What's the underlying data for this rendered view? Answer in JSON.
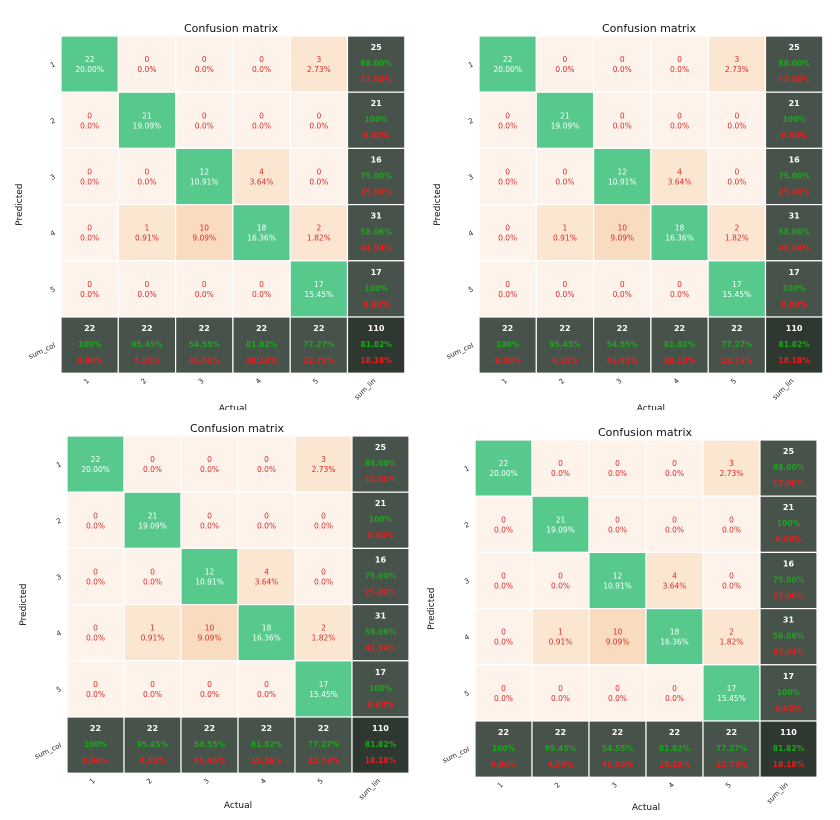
{
  "chart_data": [
    {
      "type": "heatmap",
      "title": "Confusion matrix",
      "xlabel": "Actual",
      "ylabel": "Predicted",
      "row_labels": [
        "1",
        "2",
        "3",
        "4",
        "5",
        "sum_col"
      ],
      "col_labels": [
        "1",
        "2",
        "3",
        "4",
        "5",
        "sum_lin"
      ],
      "cells": [
        [
          {
            "count": "22",
            "pct": "20.00%"
          },
          {
            "count": "0",
            "pct": "0.0%"
          },
          {
            "count": "0",
            "pct": "0.0%"
          },
          {
            "count": "0",
            "pct": "0.0%"
          },
          {
            "count": "3",
            "pct": "2.73%"
          },
          {
            "count": "25",
            "pct": "88.00%",
            "err": "12.00%"
          }
        ],
        [
          {
            "count": "0",
            "pct": "0.0%"
          },
          {
            "count": "21",
            "pct": "19.09%"
          },
          {
            "count": "0",
            "pct": "0.0%"
          },
          {
            "count": "0",
            "pct": "0.0%"
          },
          {
            "count": "0",
            "pct": "0.0%"
          },
          {
            "count": "21",
            "pct": "100%",
            "err": "0.00%"
          }
        ],
        [
          {
            "count": "0",
            "pct": "0.0%"
          },
          {
            "count": "0",
            "pct": "0.0%"
          },
          {
            "count": "12",
            "pct": "10.91%"
          },
          {
            "count": "4",
            "pct": "3.64%"
          },
          {
            "count": "0",
            "pct": "0.0%"
          },
          {
            "count": "16",
            "pct": "75.00%",
            "err": "25.00%"
          }
        ],
        [
          {
            "count": "0",
            "pct": "0.0%"
          },
          {
            "count": "1",
            "pct": "0.91%"
          },
          {
            "count": "10",
            "pct": "9.09%"
          },
          {
            "count": "18",
            "pct": "16.36%"
          },
          {
            "count": "2",
            "pct": "1.82%"
          },
          {
            "count": "31",
            "pct": "58.06%",
            "err": "41.94%"
          }
        ],
        [
          {
            "count": "0",
            "pct": "0.0%"
          },
          {
            "count": "0",
            "pct": "0.0%"
          },
          {
            "count": "0",
            "pct": "0.0%"
          },
          {
            "count": "0",
            "pct": "0.0%"
          },
          {
            "count": "17",
            "pct": "15.45%"
          },
          {
            "count": "17",
            "pct": "100%",
            "err": "0.00%"
          }
        ],
        [
          {
            "count": "22",
            "pct": "100%",
            "err": "0.00%"
          },
          {
            "count": "22",
            "pct": "95.45%",
            "err": "4.55%"
          },
          {
            "count": "22",
            "pct": "54.55%",
            "err": "45.45%"
          },
          {
            "count": "22",
            "pct": "81.82%",
            "err": "18.18%"
          },
          {
            "count": "22",
            "pct": "77.27%",
            "err": "22.73%"
          },
          {
            "count": "110",
            "pct": "81.82%",
            "err": "18.18%"
          }
        ]
      ]
    },
    {
      "type": "heatmap",
      "title": "Confusion matrix",
      "xlabel": "Actual",
      "ylabel": "Predicted",
      "row_labels": [
        "1",
        "2",
        "3",
        "4",
        "5",
        "sum_col"
      ],
      "col_labels": [
        "1",
        "2",
        "3",
        "4",
        "5",
        "sum_lin"
      ],
      "cells": [
        [
          {
            "count": "22",
            "pct": "20.00%"
          },
          {
            "count": "0",
            "pct": "0.0%"
          },
          {
            "count": "0",
            "pct": "0.0%"
          },
          {
            "count": "0",
            "pct": "0.0%"
          },
          {
            "count": "3",
            "pct": "2.73%"
          },
          {
            "count": "25",
            "pct": "88.00%",
            "err": "12.00%"
          }
        ],
        [
          {
            "count": "0",
            "pct": "0.0%"
          },
          {
            "count": "21",
            "pct": "19.09%"
          },
          {
            "count": "0",
            "pct": "0.0%"
          },
          {
            "count": "0",
            "pct": "0.0%"
          },
          {
            "count": "0",
            "pct": "0.0%"
          },
          {
            "count": "21",
            "pct": "100%",
            "err": "0.00%"
          }
        ],
        [
          {
            "count": "0",
            "pct": "0.0%"
          },
          {
            "count": "0",
            "pct": "0.0%"
          },
          {
            "count": "12",
            "pct": "10.91%"
          },
          {
            "count": "4",
            "pct": "3.64%"
          },
          {
            "count": "0",
            "pct": "0.0%"
          },
          {
            "count": "16",
            "pct": "75.00%",
            "err": "25.00%"
          }
        ],
        [
          {
            "count": "0",
            "pct": "0.0%"
          },
          {
            "count": "1",
            "pct": "0.91%"
          },
          {
            "count": "10",
            "pct": "9.09%"
          },
          {
            "count": "18",
            "pct": "16.36%"
          },
          {
            "count": "2",
            "pct": "1.82%"
          },
          {
            "count": "31",
            "pct": "58.06%",
            "err": "41.94%"
          }
        ],
        [
          {
            "count": "0",
            "pct": "0.0%"
          },
          {
            "count": "0",
            "pct": "0.0%"
          },
          {
            "count": "0",
            "pct": "0.0%"
          },
          {
            "count": "0",
            "pct": "0.0%"
          },
          {
            "count": "17",
            "pct": "15.45%"
          },
          {
            "count": "17",
            "pct": "100%",
            "err": "0.00%"
          }
        ],
        [
          {
            "count": "22",
            "pct": "100%",
            "err": "0.00%"
          },
          {
            "count": "22",
            "pct": "95.45%",
            "err": "4.55%"
          },
          {
            "count": "22",
            "pct": "54.55%",
            "err": "45.45%"
          },
          {
            "count": "22",
            "pct": "81.82%",
            "err": "18.18%"
          },
          {
            "count": "22",
            "pct": "77.27%",
            "err": "22.73%"
          },
          {
            "count": "110",
            "pct": "81.82%",
            "err": "18.18%"
          }
        ]
      ]
    },
    {
      "type": "heatmap",
      "title": "Confusion matrix",
      "xlabel": "Actual",
      "ylabel": "Predicted",
      "row_labels": [
        "1",
        "2",
        "3",
        "4",
        "5",
        "sum_col"
      ],
      "col_labels": [
        "1",
        "2",
        "3",
        "4",
        "5",
        "sum_lin"
      ],
      "cells": [
        [
          {
            "count": "22",
            "pct": "20.00%"
          },
          {
            "count": "0",
            "pct": "0.0%"
          },
          {
            "count": "0",
            "pct": "0.0%"
          },
          {
            "count": "0",
            "pct": "0.0%"
          },
          {
            "count": "3",
            "pct": "2.73%"
          },
          {
            "count": "25",
            "pct": "88.00%",
            "err": "12.00%"
          }
        ],
        [
          {
            "count": "0",
            "pct": "0.0%"
          },
          {
            "count": "21",
            "pct": "19.09%"
          },
          {
            "count": "0",
            "pct": "0.0%"
          },
          {
            "count": "0",
            "pct": "0.0%"
          },
          {
            "count": "0",
            "pct": "0.0%"
          },
          {
            "count": "21",
            "pct": "100%",
            "err": "0.00%"
          }
        ],
        [
          {
            "count": "0",
            "pct": "0.0%"
          },
          {
            "count": "0",
            "pct": "0.0%"
          },
          {
            "count": "12",
            "pct": "10.91%"
          },
          {
            "count": "4",
            "pct": "3.64%"
          },
          {
            "count": "0",
            "pct": "0.0%"
          },
          {
            "count": "16",
            "pct": "75.00%",
            "err": "25.00%"
          }
        ],
        [
          {
            "count": "0",
            "pct": "0.0%"
          },
          {
            "count": "1",
            "pct": "0.91%"
          },
          {
            "count": "10",
            "pct": "9.09%"
          },
          {
            "count": "18",
            "pct": "16.36%"
          },
          {
            "count": "2",
            "pct": "1.82%"
          },
          {
            "count": "31",
            "pct": "58.06%",
            "err": "41.94%"
          }
        ],
        [
          {
            "count": "0",
            "pct": "0.0%"
          },
          {
            "count": "0",
            "pct": "0.0%"
          },
          {
            "count": "0",
            "pct": "0.0%"
          },
          {
            "count": "0",
            "pct": "0.0%"
          },
          {
            "count": "17",
            "pct": "15.45%"
          },
          {
            "count": "17",
            "pct": "100%",
            "err": "0.00%"
          }
        ],
        [
          {
            "count": "22",
            "pct": "100%",
            "err": "0.00%"
          },
          {
            "count": "22",
            "pct": "95.45%",
            "err": "4.55%"
          },
          {
            "count": "22",
            "pct": "54.55%",
            "err": "45.45%"
          },
          {
            "count": "22",
            "pct": "81.82%",
            "err": "18.18%"
          },
          {
            "count": "22",
            "pct": "77.27%",
            "err": "22.73%"
          },
          {
            "count": "110",
            "pct": "81.82%",
            "err": "18.18%"
          }
        ]
      ]
    },
    {
      "type": "heatmap",
      "title": "Confusion matrix",
      "xlabel": "Actual",
      "ylabel": "Predicted",
      "row_labels": [
        "1",
        "2",
        "3",
        "4",
        "5",
        "sum_col"
      ],
      "col_labels": [
        "1",
        "2",
        "3",
        "4",
        "5",
        "sum_lin"
      ],
      "cells": [
        [
          {
            "count": "22",
            "pct": "20.00%"
          },
          {
            "count": "0",
            "pct": "0.0%"
          },
          {
            "count": "0",
            "pct": "0.0%"
          },
          {
            "count": "0",
            "pct": "0.0%"
          },
          {
            "count": "3",
            "pct": "2.73%"
          },
          {
            "count": "25",
            "pct": "88.00%",
            "err": "12.00%"
          }
        ],
        [
          {
            "count": "0",
            "pct": "0.0%"
          },
          {
            "count": "21",
            "pct": "19.09%"
          },
          {
            "count": "0",
            "pct": "0.0%"
          },
          {
            "count": "0",
            "pct": "0.0%"
          },
          {
            "count": "0",
            "pct": "0.0%"
          },
          {
            "count": "21",
            "pct": "100%",
            "err": "0.00%"
          }
        ],
        [
          {
            "count": "0",
            "pct": "0.0%"
          },
          {
            "count": "0",
            "pct": "0.0%"
          },
          {
            "count": "12",
            "pct": "10.91%"
          },
          {
            "count": "4",
            "pct": "3.64%"
          },
          {
            "count": "0",
            "pct": "0.0%"
          },
          {
            "count": "16",
            "pct": "75.00%",
            "err": "25.00%"
          }
        ],
        [
          {
            "count": "0",
            "pct": "0.0%"
          },
          {
            "count": "1",
            "pct": "0.91%"
          },
          {
            "count": "10",
            "pct": "9.09%"
          },
          {
            "count": "18",
            "pct": "16.36%"
          },
          {
            "count": "2",
            "pct": "1.82%"
          },
          {
            "count": "31",
            "pct": "58.06%",
            "err": "41.94%"
          }
        ],
        [
          {
            "count": "0",
            "pct": "0.0%"
          },
          {
            "count": "0",
            "pct": "0.0%"
          },
          {
            "count": "0",
            "pct": "0.0%"
          },
          {
            "count": "0",
            "pct": "0.0%"
          },
          {
            "count": "17",
            "pct": "15.45%"
          },
          {
            "count": "17",
            "pct": "100%",
            "err": "0.00%"
          }
        ],
        [
          {
            "count": "22",
            "pct": "100%",
            "err": "0.00%"
          },
          {
            "count": "22",
            "pct": "95.45%",
            "err": "4.55%"
          },
          {
            "count": "22",
            "pct": "54.55%",
            "err": "45.45%"
          },
          {
            "count": "22",
            "pct": "81.82%",
            "err": "18.18%"
          },
          {
            "count": "22",
            "pct": "77.27%",
            "err": "22.73%"
          },
          {
            "count": "110",
            "pct": "81.82%",
            "err": "18.18%"
          }
        ]
      ]
    }
  ],
  "colors": {
    "diagonal": "#57c98c",
    "empty": "#fdf3ea",
    "light": "#fbe6d2",
    "medium": "#f9dcbf",
    "sum": "#47524b",
    "total": "#2e3830",
    "count_text": "#dd2a2a",
    "diag_text": "#ffffff",
    "good_text": "#18a818",
    "bad_text": "#ee1c1c"
  }
}
